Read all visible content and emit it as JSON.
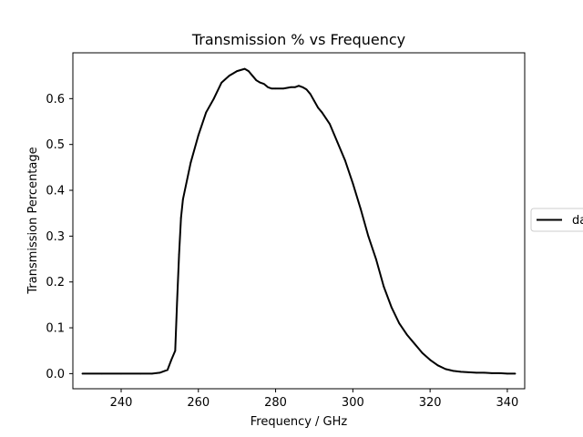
{
  "chart_data": {
    "type": "line",
    "title": "Transmission % vs Frequency",
    "xlabel": "Frequency / GHz",
    "ylabel": "Transmission Percentage",
    "xlim": [
      227.5,
      344.5
    ],
    "ylim": [
      -0.033,
      0.7
    ],
    "xticks": [
      240,
      260,
      280,
      300,
      320,
      340
    ],
    "yticks": [
      0.0,
      0.1,
      0.2,
      0.3,
      0.4,
      0.5,
      0.6
    ],
    "xtick_labels": [
      "240",
      "260",
      "280",
      "300",
      "320",
      "340"
    ],
    "ytick_labels": [
      "0.0",
      "0.1",
      "0.2",
      "0.3",
      "0.4",
      "0.5",
      "0.6"
    ],
    "grid": false,
    "legend": {
      "position": "right (clipped)",
      "entries": [
        "da"
      ]
    },
    "series": [
      {
        "name": "da",
        "color": "#000000",
        "x": [
          230,
          235,
          240,
          245,
          248,
          250,
          252,
          253,
          254,
          254.5,
          255,
          255.5,
          256,
          258,
          260,
          262,
          264,
          266,
          268,
          270,
          272,
          273,
          274,
          275,
          276,
          277,
          278,
          279,
          280,
          282,
          284,
          285,
          286,
          287,
          288,
          289,
          290,
          291,
          292,
          294,
          296,
          298,
          300,
          302,
          304,
          306,
          308,
          310,
          312,
          314,
          316,
          318,
          320,
          322,
          324,
          326,
          328,
          330,
          332,
          334,
          336,
          338,
          340,
          342
        ],
        "y": [
          0.0,
          0.0,
          0.0,
          0.0,
          0.0,
          0.002,
          0.008,
          0.03,
          0.05,
          0.16,
          0.26,
          0.34,
          0.38,
          0.46,
          0.52,
          0.57,
          0.6,
          0.635,
          0.65,
          0.66,
          0.665,
          0.66,
          0.65,
          0.64,
          0.635,
          0.632,
          0.625,
          0.622,
          0.622,
          0.622,
          0.625,
          0.625,
          0.628,
          0.625,
          0.62,
          0.61,
          0.595,
          0.58,
          0.57,
          0.545,
          0.505,
          0.465,
          0.415,
          0.36,
          0.3,
          0.25,
          0.19,
          0.145,
          0.11,
          0.085,
          0.065,
          0.045,
          0.03,
          0.018,
          0.01,
          0.006,
          0.004,
          0.003,
          0.002,
          0.002,
          0.001,
          0.001,
          0.0,
          0.0
        ]
      }
    ]
  }
}
